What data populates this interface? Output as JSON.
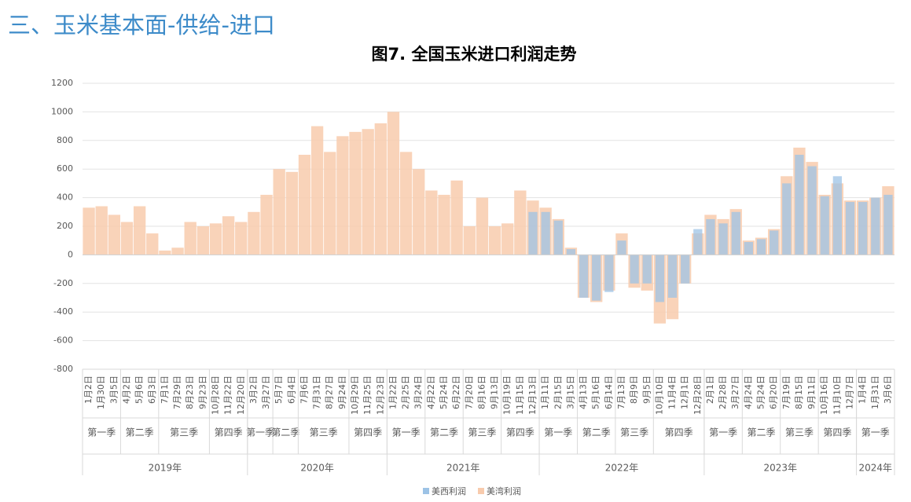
{
  "slide_title": "三、玉米基本面-供给-进口",
  "chart_data": {
    "type": "bar",
    "title": "图7. 全国玉米进口利润走势",
    "categories": [
      [
        "2019年",
        "第一季",
        "1月2日"
      ],
      [
        "2019年",
        "第一季",
        "1月30日"
      ],
      [
        "2019年",
        "第一季",
        "3月5日"
      ],
      [
        "2019年",
        "第二季",
        "4月2日"
      ],
      [
        "2019年",
        "第二季",
        "5月6日"
      ],
      [
        "2019年",
        "第二季",
        "6月3日"
      ],
      [
        "2019年",
        "第三季",
        "7月1日"
      ],
      [
        "2019年",
        "第三季",
        "7月29日"
      ],
      [
        "2019年",
        "第三季",
        "8月23日"
      ],
      [
        "2019年",
        "第三季",
        "9月23日"
      ],
      [
        "2019年",
        "第四季",
        "10月28日"
      ],
      [
        "2019年",
        "第四季",
        "11月22日"
      ],
      [
        "2019年",
        "第四季",
        "12月20日"
      ],
      [
        "2020年",
        "第一季",
        "3月2日"
      ],
      [
        "2020年",
        "第一季",
        "3月27日"
      ],
      [
        "2020年",
        "第二季",
        "5月7日"
      ],
      [
        "2020年",
        "第二季",
        "6月4日"
      ],
      [
        "2020年",
        "第三季",
        "7月6日"
      ],
      [
        "2020年",
        "第三季",
        "7月31日"
      ],
      [
        "2020年",
        "第三季",
        "8月27日"
      ],
      [
        "2020年",
        "第三季",
        "9月24日"
      ],
      [
        "2020年",
        "第四季",
        "10月29日"
      ],
      [
        "2020年",
        "第四季",
        "11月25日"
      ],
      [
        "2020年",
        "第四季",
        "12月23日"
      ],
      [
        "2021年",
        "第一季",
        "1月22日"
      ],
      [
        "2021年",
        "第一季",
        "2月25日"
      ],
      [
        "2021年",
        "第一季",
        "3月24日"
      ],
      [
        "2021年",
        "第二季",
        "4月22日"
      ],
      [
        "2021年",
        "第二季",
        "5月24日"
      ],
      [
        "2021年",
        "第二季",
        "6月22日"
      ],
      [
        "2021年",
        "第三季",
        "7月20日"
      ],
      [
        "2021年",
        "第三季",
        "8月16日"
      ],
      [
        "2021年",
        "第三季",
        "9月13日"
      ],
      [
        "2021年",
        "第四季",
        "10月19日"
      ],
      [
        "2021年",
        "第四季",
        "11月15日"
      ],
      [
        "2021年",
        "第四季",
        "12月13日"
      ],
      [
        "2022年",
        "第一季",
        "1月11日"
      ],
      [
        "2022年",
        "第一季",
        "2月15日"
      ],
      [
        "2022年",
        "第一季",
        "3月15日"
      ],
      [
        "2022年",
        "第二季",
        "4月13日"
      ],
      [
        "2022年",
        "第二季",
        "5月16日"
      ],
      [
        "2022年",
        "第二季",
        "6月14日"
      ],
      [
        "2022年",
        "第三季",
        "7月13日"
      ],
      [
        "2022年",
        "第三季",
        "8月9日"
      ],
      [
        "2022年",
        "第三季",
        "9月5日"
      ],
      [
        "2022年",
        "第四季",
        "10月10日"
      ],
      [
        "2022年",
        "第四季",
        "11月4日"
      ],
      [
        "2022年",
        "第四季",
        "12月1日"
      ],
      [
        "2022年",
        "第四季",
        "12月28日"
      ],
      [
        "2023年",
        "第一季",
        "2月1日"
      ],
      [
        "2023年",
        "第一季",
        "2月28日"
      ],
      [
        "2023年",
        "第一季",
        "3月27日"
      ],
      [
        "2023年",
        "第二季",
        "4月24日"
      ],
      [
        "2023年",
        "第二季",
        "5月24日"
      ],
      [
        "2023年",
        "第二季",
        "6月20日"
      ],
      [
        "2023年",
        "第三季",
        "7月19日"
      ],
      [
        "2023年",
        "第三季",
        "8月15日"
      ],
      [
        "2023年",
        "第三季",
        "9月11日"
      ],
      [
        "2023年",
        "第四季",
        "10月16日"
      ],
      [
        "2023年",
        "第四季",
        "11月10日"
      ],
      [
        "2023年",
        "第四季",
        "12月7日"
      ],
      [
        "2024年",
        "第一季",
        "1月4日"
      ],
      [
        "2024年",
        "第一季",
        "1月31日"
      ],
      [
        "2024年",
        "第一季",
        "3月6日"
      ]
    ],
    "series": [
      {
        "name": "美湾利润",
        "color": "#f8cbad",
        "values": [
          330,
          340,
          280,
          230,
          340,
          150,
          30,
          50,
          230,
          200,
          220,
          270,
          230,
          300,
          420,
          600,
          580,
          700,
          900,
          720,
          830,
          860,
          880,
          920,
          1000,
          720,
          600,
          450,
          420,
          520,
          200,
          400,
          200,
          220,
          450,
          380,
          330,
          250,
          50,
          -300,
          -330,
          -250,
          150,
          -230,
          -250,
          -480,
          -450,
          -200,
          150,
          280,
          250,
          320,
          100,
          120,
          180,
          550,
          750,
          650,
          420,
          500,
          380,
          380,
          400,
          480
        ]
      },
      {
        "name": "美西利润",
        "color": "#9dc3e6",
        "values": [
          null,
          null,
          null,
          null,
          null,
          null,
          null,
          null,
          null,
          null,
          null,
          null,
          null,
          null,
          null,
          null,
          null,
          null,
          null,
          null,
          null,
          null,
          null,
          null,
          null,
          null,
          null,
          null,
          null,
          null,
          null,
          null,
          null,
          null,
          null,
          300,
          300,
          240,
          40,
          -300,
          -320,
          -260,
          100,
          -200,
          -200,
          -330,
          -300,
          -200,
          180,
          250,
          220,
          300,
          90,
          110,
          170,
          500,
          700,
          620,
          410,
          550,
          370,
          370,
          400,
          420
        ]
      }
    ],
    "ylim": [
      -800,
      1200
    ],
    "yticks": [
      -800,
      -600,
      -400,
      -200,
      0,
      200,
      400,
      600,
      800,
      1000,
      1200
    ],
    "grid": true
  }
}
